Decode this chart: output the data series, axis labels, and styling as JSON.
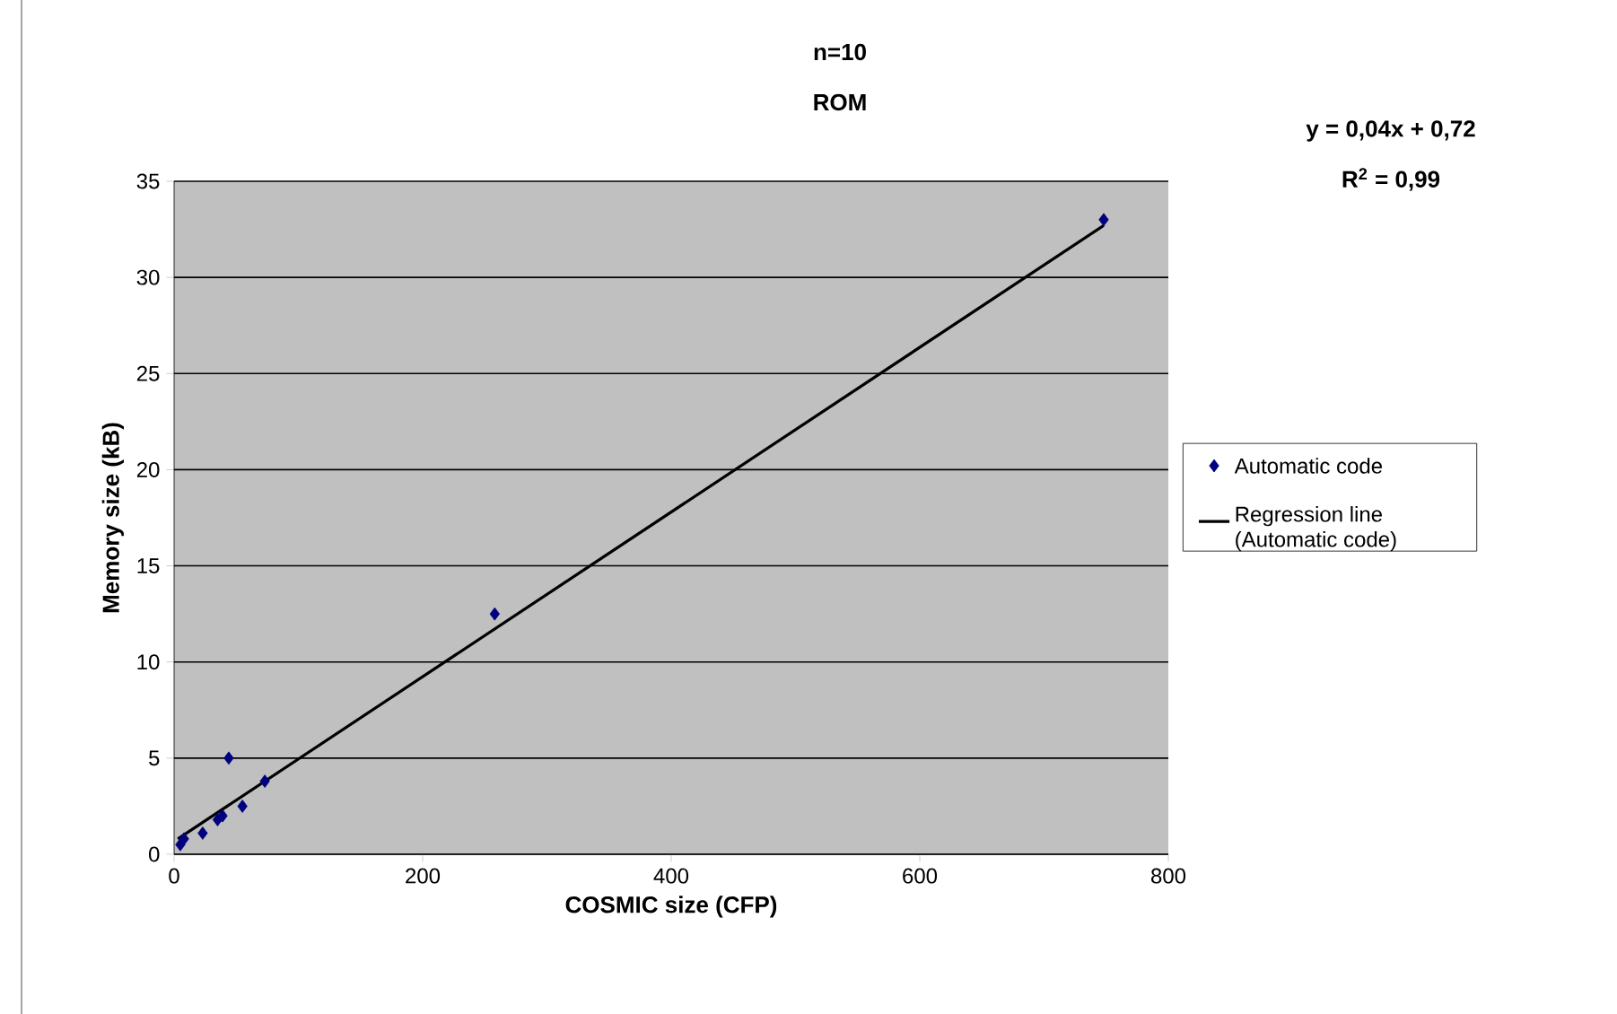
{
  "chart_data": {
    "type": "scatter",
    "title": "n=10",
    "subtitle": "ROM",
    "xlabel": "COSMIC size (CFP)",
    "ylabel": "Memory size (kB)",
    "annotations": [
      "y = 0,04x + 0,72",
      "R$^{2}$ = 0,99"
    ],
    "series": [
      {
        "name": "Automatic code",
        "color": "#000080",
        "marker": "diamond",
        "x": [
          5,
          8,
          23,
          35,
          39,
          44,
          55,
          73,
          258,
          748
        ],
        "values": [
          0.5,
          0.8,
          1.1,
          1.8,
          2.0,
          5.0,
          2.5,
          3.8,
          12.5,
          33.0
        ]
      },
      {
        "name": "Regression line (Automatic code)",
        "type": "line",
        "color": "#000000",
        "marker": "none",
        "line_style": "solid",
        "x": [
          3,
          748
        ],
        "values": [
          0.8,
          32.7
        ]
      }
    ],
    "xlim": [
      0,
      800
    ],
    "ylim": [
      0,
      35
    ],
    "xticks": [
      0,
      200,
      400,
      600,
      800
    ],
    "yticks": [
      0,
      5,
      10,
      15,
      20,
      25,
      30,
      35
    ],
    "grid": "y",
    "legend": "right"
  }
}
